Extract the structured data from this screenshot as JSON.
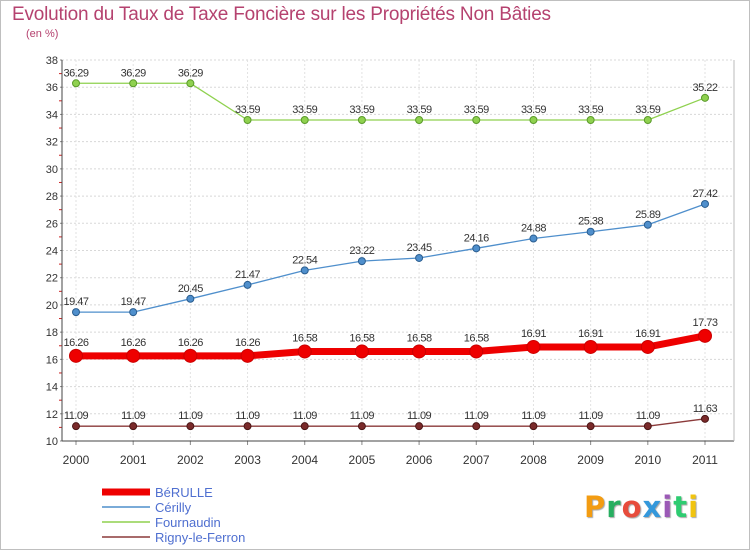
{
  "header": {
    "title": "Evolution du Taux de Taxe Foncière sur les Propriétés Non Bâties",
    "unit": "(en %)"
  },
  "logo": {
    "text": "Proxiti",
    "colors": [
      "#f39c12",
      "#27ae60",
      "#e74c3c",
      "#3498db",
      "#9b59b6",
      "#2ecc71",
      "#f1c40f"
    ]
  },
  "chart_data": {
    "type": "line",
    "title": "Evolution du Taux de Taxe Foncière sur les Propriétés Non Bâties",
    "ylabel": "(en %)",
    "xlabel": "",
    "x": [
      "2000",
      "2001",
      "2002",
      "2003",
      "2004",
      "2005",
      "2006",
      "2007",
      "2008",
      "2009",
      "2010",
      "2011"
    ],
    "ylim": [
      10,
      38
    ],
    "yticks": [
      10,
      12,
      14,
      16,
      18,
      20,
      22,
      24,
      26,
      28,
      30,
      32,
      34,
      36,
      38
    ],
    "grid": true,
    "legend": "bottom-left",
    "series": [
      {
        "name": "BéRULLE",
        "color": "#ee0000",
        "values": [
          16.26,
          16.26,
          16.26,
          16.26,
          16.58,
          16.58,
          16.58,
          16.58,
          16.91,
          16.91,
          16.91,
          17.73
        ],
        "labels": [
          "16.26",
          "16.26",
          "16.26",
          "16.26",
          "16.58",
          "16.58",
          "16.58",
          "16.58",
          "16.91",
          "16.91",
          "16.91",
          "17.73"
        ]
      },
      {
        "name": "Cérilly",
        "color": "#4f8fcc",
        "values": [
          19.47,
          19.47,
          20.45,
          21.47,
          22.54,
          23.22,
          23.45,
          24.16,
          24.88,
          25.38,
          25.89,
          27.42
        ],
        "labels": [
          "19.47",
          "19.47",
          "20.45",
          "21.47",
          "22.54",
          "23.22",
          "23.45",
          "24.16",
          "24.88",
          "25.38",
          "25.89",
          "27.42"
        ]
      },
      {
        "name": "Fournaudin",
        "color": "#8fd14f",
        "values": [
          36.29,
          36.29,
          36.29,
          33.59,
          33.59,
          33.59,
          33.59,
          33.59,
          33.59,
          33.59,
          33.59,
          35.22
        ],
        "labels": [
          "36.29",
          "36.29",
          "36.29",
          "33.59",
          "33.59",
          "33.59",
          "33.59",
          "33.59",
          "33.59",
          "33.59",
          "33.59",
          "35.22"
        ]
      },
      {
        "name": "Rigny-le-Ferron",
        "color": "#8b3a3a",
        "values": [
          11.09,
          11.09,
          11.09,
          11.09,
          11.09,
          11.09,
          11.09,
          11.09,
          11.09,
          11.09,
          11.09,
          11.63
        ],
        "labels": [
          "11.09",
          "11.09",
          "11.09",
          "11.09",
          "11.09",
          "11.09",
          "11.09",
          "11.09",
          "11.09",
          "11.09",
          "11.09",
          "11.63"
        ]
      }
    ]
  }
}
